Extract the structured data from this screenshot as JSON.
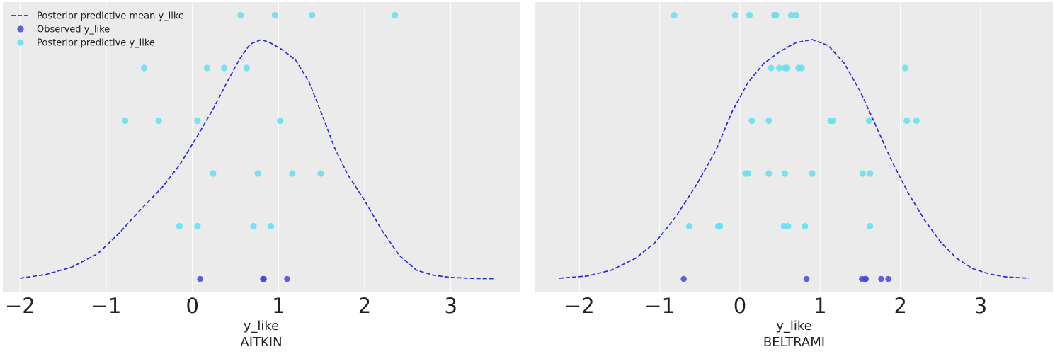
{
  "colors": {
    "background": "#ebebeb",
    "grid": "#ffffff",
    "mean_line": "#2a2ad6",
    "observed": "#4545dd",
    "predictive": "#62e0f0",
    "text": "#222222"
  },
  "chart_data": [
    {
      "type": "scatter",
      "title": "AITKIN",
      "xlabel": "y_like",
      "xlim": [
        -2.2,
        3.8
      ],
      "x_ticks": [
        -2,
        -1,
        0,
        1,
        2,
        3
      ],
      "x_tick_labels": [
        "−2",
        "−1",
        "0",
        "1",
        "2",
        "3"
      ],
      "grid": "vertical",
      "legend": {
        "placement": "top-left",
        "entries": [
          {
            "label": "Posterior predictive mean y_like",
            "marker": "dashed-line",
            "color": "#2a2ad6"
          },
          {
            "label": "Observed y_like",
            "marker": "dot",
            "color": "#4545dd"
          },
          {
            "label": "Posterior predictive y_like",
            "marker": "dot",
            "color": "#62e0f0"
          }
        ]
      },
      "observed": [
        0.09,
        0.82,
        0.83,
        1.1
      ],
      "predictive_draws": [
        [
          -0.15,
          0.06,
          0.71,
          0.91
        ],
        [
          0.24,
          0.76,
          1.16,
          1.49
        ],
        [
          -0.78,
          -0.39,
          0.06,
          1.02
        ],
        [
          -0.56,
          0.17,
          0.37,
          0.63
        ],
        [
          0.56,
          0.96,
          1.39,
          2.35
        ]
      ],
      "mean_curve": [
        [
          -2.0,
          0.005
        ],
        [
          -1.7,
          0.03
        ],
        [
          -1.4,
          0.08
        ],
        [
          -1.1,
          0.17
        ],
        [
          -0.85,
          0.31
        ],
        [
          -0.6,
          0.47
        ],
        [
          -0.35,
          0.62
        ],
        [
          -0.15,
          0.77
        ],
        [
          0.05,
          0.96
        ],
        [
          0.25,
          1.16
        ],
        [
          0.4,
          1.33
        ],
        [
          0.55,
          1.49
        ],
        [
          0.67,
          1.59
        ],
        [
          0.8,
          1.62
        ],
        [
          0.9,
          1.6
        ],
        [
          1.05,
          1.55
        ],
        [
          1.2,
          1.48
        ],
        [
          1.35,
          1.34
        ],
        [
          1.5,
          1.12
        ],
        [
          1.65,
          0.89
        ],
        [
          1.8,
          0.71
        ],
        [
          2.0,
          0.53
        ],
        [
          2.2,
          0.33
        ],
        [
          2.4,
          0.16
        ],
        [
          2.6,
          0.06
        ],
        [
          2.8,
          0.025
        ],
        [
          3.0,
          0.01
        ],
        [
          3.3,
          0.003
        ],
        [
          3.5,
          0.002
        ]
      ]
    },
    {
      "type": "scatter",
      "title": "BELTRAMI",
      "xlabel": "y_like",
      "xlim": [
        -2.55,
        3.9
      ],
      "x_ticks": [
        -2,
        -1,
        0,
        1,
        2,
        3
      ],
      "x_tick_labels": [
        "−2",
        "−1",
        "0",
        "1",
        "2",
        "3"
      ],
      "grid": "vertical",
      "observed": [
        -0.7,
        0.83,
        1.52,
        1.56,
        1.57,
        1.76,
        1.85
      ],
      "predictive_draws": [
        [
          -0.63,
          -0.27,
          -0.25,
          0.55,
          0.6,
          0.81,
          1.62
        ],
        [
          0.07,
          0.1,
          0.36,
          0.56,
          0.9,
          1.53,
          1.62
        ],
        [
          0.15,
          0.36,
          1.13,
          1.16,
          1.61,
          2.08,
          2.2
        ],
        [
          0.39,
          0.49,
          0.56,
          0.59,
          0.73,
          0.77,
          2.06
        ],
        [
          -0.82,
          -0.06,
          0.12,
          0.43,
          0.45,
          0.64,
          0.7
        ]
      ],
      "mean_curve": [
        [
          -2.25,
          0.005
        ],
        [
          -1.9,
          0.02
        ],
        [
          -1.6,
          0.06
        ],
        [
          -1.3,
          0.14
        ],
        [
          -1.05,
          0.25
        ],
        [
          -0.8,
          0.42
        ],
        [
          -0.55,
          0.63
        ],
        [
          -0.3,
          0.87
        ],
        [
          -0.1,
          1.13
        ],
        [
          0.1,
          1.33
        ],
        [
          0.3,
          1.46
        ],
        [
          0.5,
          1.54
        ],
        [
          0.7,
          1.6
        ],
        [
          0.9,
          1.62
        ],
        [
          1.1,
          1.58
        ],
        [
          1.3,
          1.46
        ],
        [
          1.5,
          1.27
        ],
        [
          1.7,
          1.03
        ],
        [
          1.9,
          0.79
        ],
        [
          2.1,
          0.58
        ],
        [
          2.3,
          0.4
        ],
        [
          2.5,
          0.25
        ],
        [
          2.7,
          0.14
        ],
        [
          2.9,
          0.07
        ],
        [
          3.1,
          0.035
        ],
        [
          3.3,
          0.015
        ],
        [
          3.6,
          0.005
        ]
      ]
    }
  ]
}
